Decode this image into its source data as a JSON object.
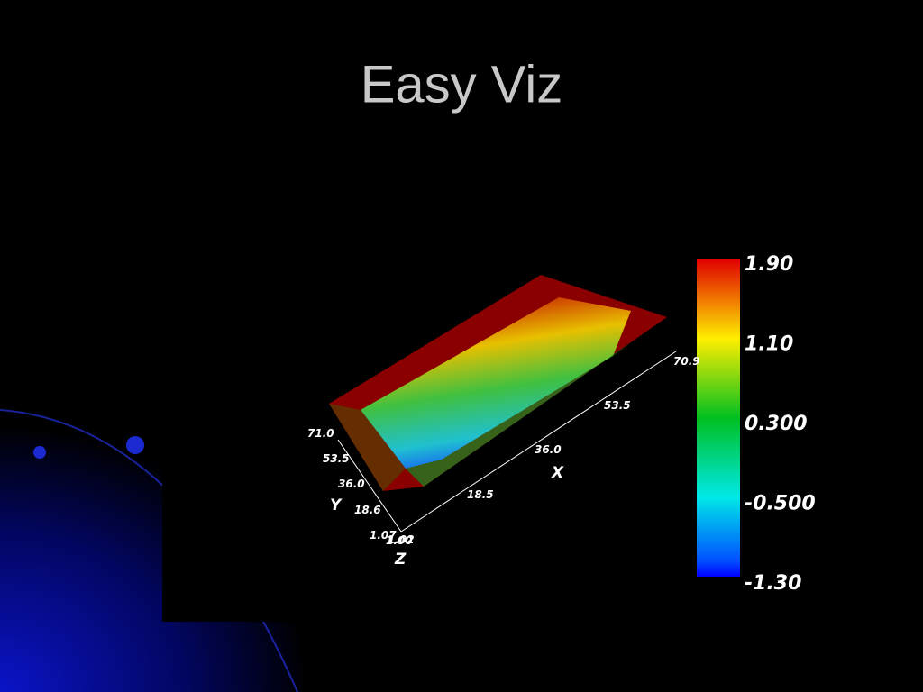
{
  "title": "Easy Viz",
  "plot": {
    "x_axis": {
      "label": "X",
      "ticks": [
        "1.02",
        "18.5",
        "36.0",
        "53.5",
        "70.9"
      ]
    },
    "y_axis": {
      "label": "Y",
      "ticks": [
        "1.07",
        "18.6",
        "36.0",
        "53.5",
        "71.0"
      ]
    },
    "z_axis": {
      "label": "Z",
      "ticks": [
        "1.00"
      ]
    },
    "colorbar": {
      "ticks": [
        "1.90",
        "1.10",
        "0.300",
        "-0.500",
        "-1.30"
      ]
    }
  }
}
